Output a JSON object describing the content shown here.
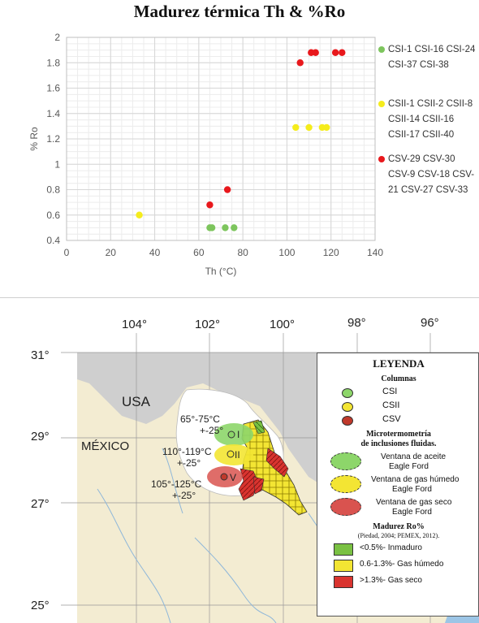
{
  "title": "Madurez térmica Th & %Ro",
  "chart_data": {
    "type": "scatter",
    "title": "Madurez térmica Th & %Ro",
    "xlabel": "Th (°C)",
    "ylabel": "% Ro",
    "xlim": [
      0,
      140
    ],
    "ylim": [
      0.4,
      2
    ],
    "xticks": [
      "0",
      "20",
      "40",
      "60",
      "80",
      "100",
      "120",
      "140"
    ],
    "yticks": [
      "0.4",
      "0.6",
      "0.8",
      "1",
      "1.2",
      "1.4",
      "1.6",
      "1.8",
      "2"
    ],
    "grid": true,
    "legend_position": "right",
    "series": [
      {
        "name": "CSI-1 CSI-16 CSI-24 CSI-37 CSI-38",
        "color": "#7dc55d",
        "points": [
          [
            65,
            0.5
          ],
          [
            66,
            0.5
          ],
          [
            72,
            0.5
          ],
          [
            76,
            0.5
          ]
        ]
      },
      {
        "name": "CSII-1 CSII-2 CSII-8 CSII-14 CSII-16 CSII-17 CSII-40",
        "color": "#f5ec1c",
        "points": [
          [
            33,
            0.6
          ],
          [
            104,
            1.29
          ],
          [
            110,
            1.29
          ],
          [
            116,
            1.29
          ],
          [
            118,
            1.29
          ]
        ]
      },
      {
        "name": "CSV-29 CSV-30 CSV-9 CSV-18 CSV-21 CSV-27 CSV-33",
        "color": "#e8181c",
        "points": [
          [
            65,
            0.68
          ],
          [
            73,
            0.8
          ],
          [
            106,
            1.8
          ],
          [
            111,
            1.88
          ],
          [
            113,
            1.88
          ],
          [
            122,
            1.88
          ],
          [
            125,
            1.88
          ]
        ]
      }
    ]
  },
  "legend_lines": [
    [
      "CSI-1 CSI-16 CSI-24",
      "CSI-37 CSI-38"
    ],
    [
      "CSII-1 CSII-2 CSII-8",
      "CSII-14 CSII-16",
      "CSII-17 CSII-40"
    ],
    [
      "CSV-29 CSV-30",
      "CSV-9 CSV-18 CSV-",
      "21 CSV-27 CSV-33"
    ]
  ],
  "map": {
    "lon_labels": [
      "104°",
      "102°",
      "100°",
      "98°",
      "96°"
    ],
    "lat_labels": [
      "31°",
      "29°",
      "27°",
      "25°"
    ],
    "country_usa": "USA",
    "country_mexico": "MÉXICO",
    "zone_temps": [
      "65°-75°C",
      "+-25°",
      "110°-119°C",
      "+-25°",
      "105°-125°C",
      "+-25°"
    ],
    "zone_labels": [
      "I",
      "II",
      "V"
    ],
    "legend": {
      "title": "LEYENDA",
      "columns_title": "Columnas",
      "columns": [
        "CSI",
        "CSII",
        "CSV"
      ],
      "micro_title": [
        "Microtermometría",
        "de inclusiones fluidas."
      ],
      "windows": [
        [
          "Ventana de aceite",
          "Eagle Ford"
        ],
        [
          "Ventana de gas húmedo",
          "Eagle Ford"
        ],
        [
          "Ventana de gas seco",
          "Eagle Ford"
        ]
      ],
      "ro_title": "Madurez Ro%",
      "ro_source": "(Piedad, 2004; PEMEX, 2012).",
      "ro_items": [
        "<0.5%- Inmaduro",
        "0.6-1.3%- Gas húmedo",
        ">1.3%- Gas seco"
      ],
      "colors": {
        "csi": "#8dd66a",
        "csii": "#f3e533",
        "csv": "#d9534f",
        "map_bg": "#f3ecd2",
        "usa": "#cfcfcf",
        "sea": "#9cc5e6"
      }
    }
  }
}
